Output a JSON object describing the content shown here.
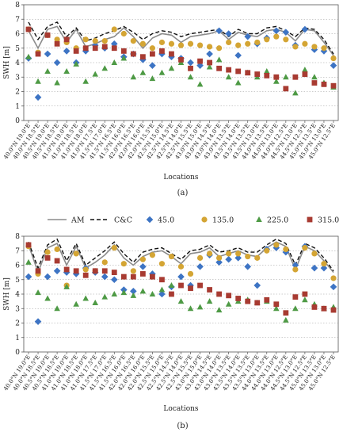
{
  "figure": {
    "panel_labels": [
      "(a)",
      "(b)"
    ]
  },
  "legend": {
    "entries": [
      {
        "name": "AM",
        "kind": "line",
        "color": "#8c8c8c"
      },
      {
        "name": "C&C",
        "kind": "dashed",
        "color": "#111111"
      },
      {
        "name": "45.0",
        "kind": "diamond",
        "color": "#3d74c4"
      },
      {
        "name": "135.0",
        "kind": "circle",
        "color": "#d4a534"
      },
      {
        "name": "225.0",
        "kind": "triangle",
        "color": "#4e9a45"
      },
      {
        "name": "315.0",
        "kind": "square",
        "color": "#a83b32"
      }
    ]
  },
  "chart_data": [
    {
      "type": "line",
      "panel": "(a)",
      "title": "",
      "xlabel": "Locations",
      "ylabel": "SWH [m]",
      "ylim": [
        0,
        8
      ],
      "yticks": [
        0,
        1,
        2,
        3,
        4,
        5,
        6,
        7,
        8
      ],
      "grid": "horizontal dotted",
      "categories": [
        "40.0°N 19.0°E",
        "40.0°N 18.5°E",
        "40.5°N 19.0°E",
        "40.5°N 18.5°E",
        "41.0°N 19.0°E",
        "41.0°N 18.5°E",
        "41.0°N 18.0°E",
        "41.0°N 17.5°E",
        "41.5°N 17.0°E",
        "41.5°N 16.5°E",
        "41.5°N 16.0°E",
        "42.0°N 16.5°E",
        "42.0°N 16.0°E",
        "42.0°N 15.5°E",
        "42.5°N 15.0°E",
        "42.5°N 14.5°E",
        "42.5°N 14.0°E",
        "42.5°N 15.5°E",
        "43.0°N 15.0°E",
        "43.0°N 14.5°E",
        "43.0°N 14.0°E",
        "43.0°N 13.5°E",
        "43.5°N 14.0°E",
        "43.5°N 13.5°E",
        "43.5°N 13.0°E",
        "44.0°N 13.5°E",
        "44.0°N 13.0°E",
        "44.0°N 12.5°E",
        "44.5°N 13.0°E",
        "44.5°N 12.5°E",
        "45.0°N 13.5°E",
        "45.0°N 13.0°E",
        "45.0°N 12.5°E"
      ],
      "series": [
        {
          "name": "AM",
          "values": [
            6.2,
            5.0,
            6.3,
            6.5,
            5.4,
            6.3,
            5.1,
            5.3,
            5.6,
            5.8,
            6.4,
            5.8,
            5.0,
            5.7,
            6.0,
            5.9,
            5.4,
            5.8,
            5.9,
            6.0,
            6.2,
            5.6,
            6.1,
            5.9,
            5.8,
            6.2,
            6.3,
            6.1,
            5.5,
            6.3,
            6.2,
            5.4,
            4.5
          ]
        },
        {
          "name": "C&C",
          "values": [
            6.8,
            5.6,
            6.5,
            6.8,
            5.8,
            6.4,
            5.5,
            5.7,
            6.0,
            6.2,
            6.5,
            6.1,
            5.6,
            6.0,
            6.2,
            6.1,
            5.8,
            6.0,
            6.1,
            6.2,
            6.3,
            5.8,
            6.3,
            6.0,
            6.0,
            6.4,
            6.5,
            6.2,
            5.8,
            6.4,
            6.3,
            5.6,
            4.6
          ]
        },
        {
          "name": "45.0",
          "values": [
            4.3,
            1.6,
            4.6,
            4.0,
            4.8,
            4.0,
            4.8,
            5.2,
            5.0,
            5.3,
            4.4,
            4.6,
            4.2,
            3.8,
            4.6,
            4.4,
            4.3,
            4.0,
            3.8,
            4.6,
            6.2,
            6.0,
            4.5,
            5.8,
            5.3,
            5.7,
            6.2,
            6.1,
            5.2,
            6.3,
            4.9,
            4.8,
            3.8
          ]
        },
        {
          "name": "135.0",
          "values": [
            6.3,
            4.7,
            5.9,
            5.6,
            5.4,
            5.0,
            5.6,
            5.5,
            5.5,
            6.3,
            6.0,
            5.5,
            5.3,
            5.0,
            5.4,
            5.3,
            5.2,
            5.3,
            5.2,
            5.1,
            5.0,
            5.4,
            5.2,
            5.3,
            5.4,
            5.6,
            5.8,
            5.6,
            5.1,
            5.3,
            5.1,
            5.0,
            4.3
          ]
        },
        {
          "name": "225.0",
          "values": [
            4.4,
            2.7,
            3.4,
            2.6,
            3.4,
            3.9,
            2.7,
            3.2,
            3.6,
            4.0,
            4.3,
            3.0,
            3.3,
            2.9,
            3.3,
            3.6,
            4.0,
            3.0,
            2.5,
            3.7,
            4.2,
            3.0,
            2.6,
            3.3,
            3.0,
            3.4,
            2.7,
            3.0,
            1.9,
            3.5,
            3.0,
            2.6,
            2.3
          ]
        },
        {
          "name": "315.0",
          "values": [
            6.3,
            4.6,
            5.9,
            5.3,
            5.6,
            4.8,
            5.0,
            5.0,
            5.1,
            5.0,
            4.8,
            4.6,
            4.4,
            4.6,
            4.8,
            4.6,
            4.2,
            3.6,
            4.1,
            4.0,
            3.6,
            3.5,
            3.4,
            3.3,
            3.2,
            3.1,
            3.0,
            2.2,
            3.0,
            3.2,
            2.6,
            2.5,
            2.4
          ]
        }
      ]
    },
    {
      "type": "line",
      "panel": "(b)",
      "title": "",
      "xlabel": "Locations",
      "ylabel": "SWH [m]",
      "ylim": [
        0,
        8
      ],
      "yticks": [
        0,
        1,
        2,
        3,
        4,
        5,
        6,
        7,
        8
      ],
      "grid": "horizontal dotted",
      "categories": [
        "40.0°N 19.0°E",
        "40.0°N 18.5°E",
        "40.5°N 19.0°E",
        "40.5°N 18.5°E",
        "41.0°N 19.0°E",
        "41.0°N 18.5°E",
        "41.0°N 18.0°E",
        "41.0°N 17.5°E",
        "41.5°N 17.0°E",
        "41.5°N 16.5°E",
        "41.5°N 16.0°E",
        "42.0°N 16.5°E",
        "42.0°N 16.0°E",
        "42.0°N 15.5°E",
        "42.5°N 15.0°E",
        "42.5°N 14.5°E",
        "42.5°N 14.0°E",
        "42.5°N 15.5°E",
        "43.0°N 15.0°E",
        "43.0°N 14.5°E",
        "43.0°N 14.0°E",
        "43.0°N 13.5°E",
        "43.5°N 14.0°E",
        "43.5°N 13.5°E",
        "43.5°N 13.0°E",
        "44.0°N 13.5°E",
        "44.0°N 13.0°E",
        "44.0°N 12.5°E",
        "44.5°N 13.0°E",
        "44.5°N 12.5°E",
        "45.0°N 13.5°E",
        "45.0°N 13.0°E",
        "45.0°N 12.5°E"
      ],
      "series": [
        {
          "name": "AM",
          "values": [
            7.4,
            5.5,
            7.2,
            7.5,
            6.0,
            7.3,
            5.8,
            6.2,
            6.7,
            7.4,
            6.5,
            6.0,
            6.6,
            6.9,
            7.0,
            6.6,
            6.1,
            6.8,
            6.9,
            7.2,
            6.6,
            6.8,
            7.0,
            6.7,
            6.6,
            7.2,
            7.6,
            7.3,
            5.7,
            7.3,
            7.0,
            6.3,
            5.5
          ]
        },
        {
          "name": "C&C",
          "values": [
            7.6,
            5.8,
            7.4,
            7.8,
            6.3,
            7.5,
            6.0,
            6.5,
            7.0,
            7.6,
            6.8,
            6.2,
            6.9,
            7.1,
            7.2,
            6.8,
            6.4,
            7.0,
            7.1,
            7.4,
            6.9,
            7.0,
            7.2,
            6.9,
            6.9,
            7.4,
            7.8,
            7.5,
            6.0,
            7.5,
            7.2,
            6.5,
            5.6
          ]
        },
        {
          "name": "45.0",
          "values": [
            5.2,
            2.1,
            5.2,
            5.6,
            5.5,
            5.4,
            5.8,
            5.5,
            5.2,
            5.0,
            4.3,
            4.2,
            5.9,
            5.4,
            4.0,
            4.5,
            5.2,
            4.6,
            5.9,
            6.7,
            6.2,
            6.4,
            6.5,
            5.9,
            4.6,
            7.1,
            7.2,
            6.9,
            6.0,
            7.3,
            5.8,
            5.8,
            4.5
          ]
        },
        {
          "name": "135.0",
          "values": [
            7.3,
            5.4,
            6.9,
            7.1,
            4.6,
            6.8,
            5.7,
            5.6,
            6.2,
            7.2,
            6.1,
            5.6,
            6.4,
            6.7,
            6.1,
            6.6,
            5.9,
            5.4,
            6.5,
            6.8,
            6.5,
            6.8,
            6.8,
            6.6,
            6.5,
            7.0,
            7.4,
            7.1,
            5.7,
            7.2,
            6.8,
            6.1,
            5.1
          ]
        },
        {
          "name": "225.0",
          "values": [
            6.2,
            4.1,
            3.7,
            3.0,
            4.5,
            3.3,
            3.7,
            3.4,
            3.8,
            4.0,
            4.1,
            3.9,
            4.2,
            4.0,
            4.3,
            4.6,
            3.5,
            3.0,
            3.1,
            3.5,
            2.9,
            3.3,
            3.5,
            3.6,
            3.4,
            3.5,
            3.0,
            2.2,
            3.0,
            3.6,
            3.3,
            3.0,
            3.1
          ]
        },
        {
          "name": "315.0",
          "values": [
            7.4,
            5.6,
            6.5,
            6.3,
            5.7,
            5.6,
            5.3,
            5.6,
            5.6,
            5.5,
            5.2,
            5.2,
            5.4,
            5.2,
            5.0,
            4.0,
            4.6,
            4.4,
            4.6,
            4.3,
            4.0,
            3.9,
            3.7,
            3.5,
            3.4,
            3.6,
            3.3,
            2.7,
            3.8,
            4.0,
            3.1,
            3.0,
            2.9
          ]
        }
      ]
    }
  ]
}
